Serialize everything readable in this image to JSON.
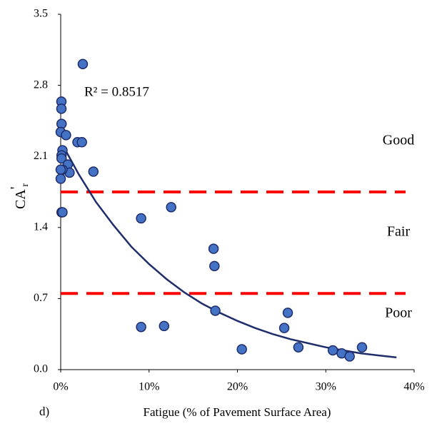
{
  "chart_data": {
    "type": "scatter",
    "x_label": "Fatigue (% of Pavement Surface Area)",
    "y_label": {
      "base": "CA",
      "sup": "'",
      "sub": "r"
    },
    "panel_label": "d)",
    "annotation": "R² = 0.8517",
    "zones": [
      "Good",
      "Fair",
      "Poor"
    ],
    "zone_levels": [
      2.25,
      1.35,
      0.55
    ],
    "thresholds": [
      1.75,
      0.75
    ],
    "threshold_color": "#ff0000",
    "point_color": "#4472c4",
    "trend_color": "#1f2d6b",
    "xlim": [
      0,
      40
    ],
    "ylim": [
      0,
      3.5
    ],
    "xticks": [
      {
        "value": 0,
        "label": "0%"
      },
      {
        "value": 10,
        "label": "10%"
      },
      {
        "value": 20,
        "label": "20%"
      },
      {
        "value": 30,
        "label": "30%"
      },
      {
        "value": 40,
        "label": "40%"
      }
    ],
    "yticks": [
      {
        "value": 0,
        "label": "0.0"
      },
      {
        "value": 0.7,
        "label": "0.7"
      },
      {
        "value": 1.4,
        "label": "1.4"
      },
      {
        "value": 2.1,
        "label": "2.1"
      },
      {
        "value": 2.8,
        "label": "2.8"
      },
      {
        "value": 3.5,
        "label": "3.5"
      }
    ],
    "x": [
      2.5,
      0.08,
      0.08,
      0.1,
      0,
      0.6,
      0.2,
      1.9,
      2.4,
      0.1,
      0.1,
      0.8,
      1.0,
      0.2,
      0,
      3.7,
      0,
      0.1,
      0.2,
      9.1,
      12.5,
      17.3,
      17.4,
      17.5,
      9.1,
      11.7,
      20.5,
      25.3,
      25.7,
      26.9,
      30.8,
      31.8,
      32.7,
      34.1
    ],
    "values": [
      3.01,
      2.64,
      2.57,
      2.42,
      2.34,
      2.31,
      2.16,
      2.24,
      2.24,
      2.11,
      2.08,
      2.02,
      1.94,
      1.97,
      1.97,
      1.95,
      1.88,
      1.55,
      1.55,
      1.49,
      1.6,
      1.19,
      1.02,
      0.58,
      0.42,
      0.43,
      0.2,
      0.41,
      0.56,
      0.22,
      0.19,
      0.16,
      0.13,
      0.22
    ],
    "trendline": {
      "x": [
        0.3,
        2,
        4,
        6,
        8,
        10,
        12,
        14,
        16,
        18,
        20,
        22,
        24,
        26,
        28,
        30,
        32,
        34,
        36,
        38
      ],
      "values": [
        2.2,
        1.93,
        1.65,
        1.42,
        1.21,
        1.04,
        0.89,
        0.76,
        0.65,
        0.56,
        0.48,
        0.41,
        0.35,
        0.3,
        0.26,
        0.22,
        0.19,
        0.16,
        0.14,
        0.12
      ]
    }
  }
}
